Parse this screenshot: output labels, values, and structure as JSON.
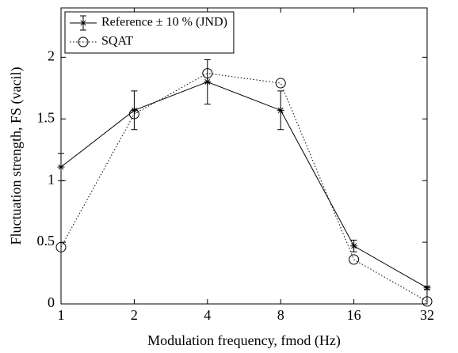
{
  "chart_data": {
    "type": "line",
    "xlabel": "Modulation frequency, fmod (Hz)",
    "ylabel": "Fluctuation strength, FS (vacil)",
    "x": [
      1,
      2,
      4,
      8,
      16,
      32
    ],
    "xscale": "log",
    "xlim": [
      1,
      32
    ],
    "xticks": [
      1,
      2,
      4,
      8,
      16,
      32
    ],
    "ylim": [
      0,
      2.4
    ],
    "yticks": [
      0,
      0.5,
      1,
      1.5,
      2
    ],
    "legend": "northwest",
    "series": [
      {
        "name": "Reference ± 10 % (JND)",
        "color": "#000000",
        "marker": "asterisk",
        "linestyle": "solid",
        "values": [
          1.11,
          1.57,
          1.8,
          1.57,
          0.47,
          0.13
        ],
        "errors": [
          0.111,
          0.157,
          0.18,
          0.157,
          0.047,
          0.013
        ]
      },
      {
        "name": "SQAT",
        "color": "#000000",
        "marker": "circle",
        "linestyle": "dotted",
        "values": [
          0.46,
          1.54,
          1.87,
          1.79,
          0.36,
          0.02
        ]
      }
    ]
  }
}
